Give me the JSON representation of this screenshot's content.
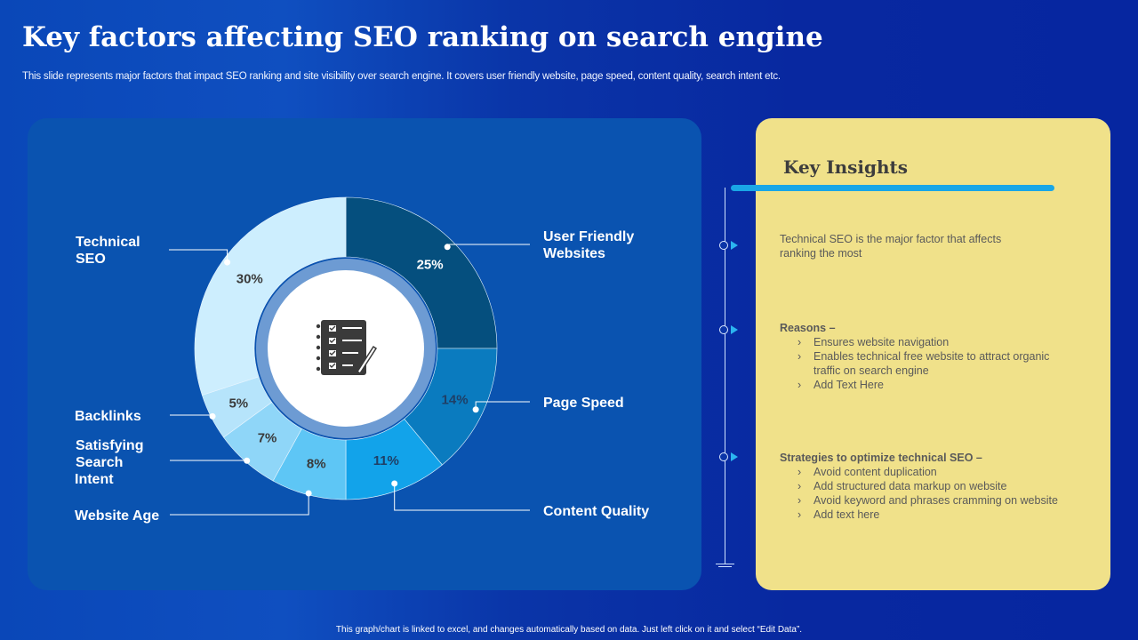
{
  "header": {
    "title": "Key factors affecting SEO ranking on search engine",
    "subtitle": "This slide represents major factors that impact SEO ranking and site visibility over search engine. It covers user friendly website, page speed, content quality, search intent etc."
  },
  "chart_data": {
    "type": "pie",
    "variant": "donut",
    "categories": [
      "User Friendly Websites",
      "Page Speed",
      "Content Quality",
      "Website Age",
      "Satisfying Search Intent",
      "Backlinks",
      "Technical SEO"
    ],
    "label_lines": [
      [
        "User Friendly",
        "Websites"
      ],
      [
        "Page Speed"
      ],
      [
        "Content Quality"
      ],
      [
        "Website Age"
      ],
      [
        "Satisfying",
        "Search",
        "Intent"
      ],
      [
        "Backlinks"
      ],
      [
        "Technical",
        "SEO"
      ]
    ],
    "values": [
      25,
      14,
      11,
      8,
      7,
      5,
      30
    ],
    "value_labels": [
      "25%",
      "14%",
      "11%",
      "8%",
      "7%",
      "5%",
      "30%"
    ],
    "colors": [
      "#054f7e",
      "#0a7bbf",
      "#12a3ea",
      "#5ec6f5",
      "#8fd6f8",
      "#b6e4fb",
      "#cdeefe"
    ],
    "label_colors": [
      "#ffffff",
      "#1f3f66",
      "#1f3f66",
      "#3a3a3a",
      "#3a3a3a",
      "#3a3a3a",
      "#3a3a3a"
    ],
    "center_icon": "checklist-notebook-icon"
  },
  "insights": {
    "title": "Key Insights",
    "intro": [
      "Technical SEO is the major factor that affects",
      "ranking the most"
    ],
    "reasons_head": "Reasons –",
    "reasons": [
      "Ensures website navigation",
      "Enables technical free website to attract organic",
      "traffic on search engine",
      "Add Text Here"
    ],
    "strategies_head": "Strategies to optimize technical SEO –",
    "strategies": [
      "Avoid content duplication",
      "Add structured data markup on website",
      "Avoid keyword and phrases cramming on website",
      "Add text here"
    ]
  },
  "footer": {
    "note": "This graph/chart is linked to excel, and changes automatically based on data. Just left click on it and select “Edit Data”."
  }
}
